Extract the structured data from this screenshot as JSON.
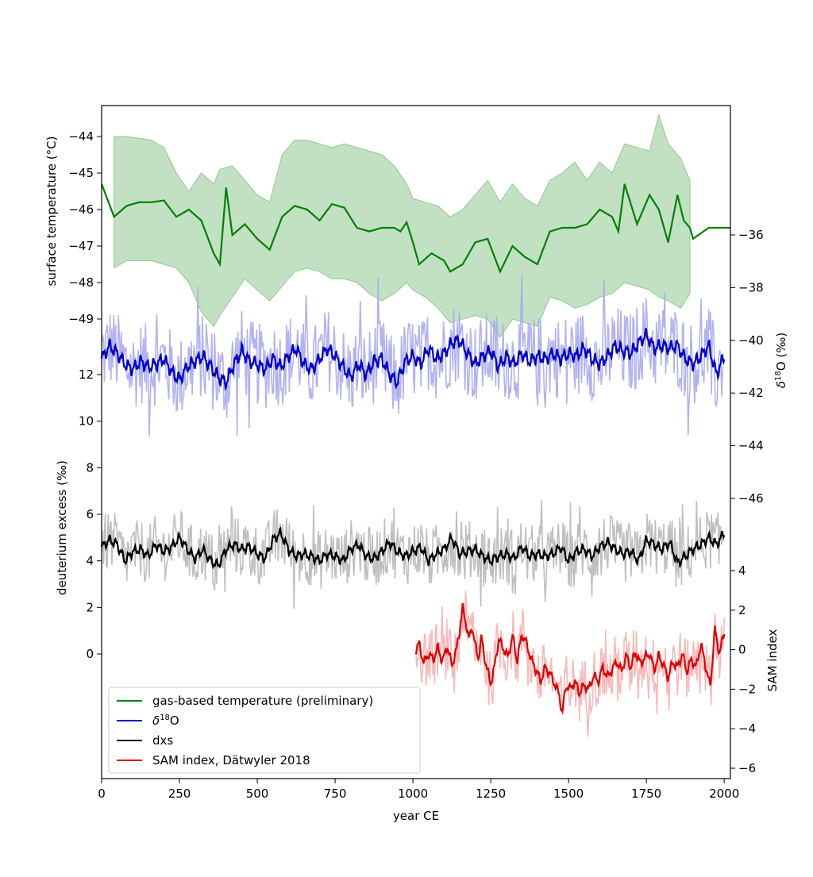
{
  "chart_data": {
    "type": "line",
    "x_axis": {
      "label": "year CE",
      "range": [
        0,
        2020
      ],
      "ticks": [
        0,
        250,
        500,
        750,
        1000,
        1250,
        1500,
        1750,
        2000
      ],
      "tick_labels": [
        "0",
        "250",
        "500",
        "750",
        "1000",
        "1250",
        "1500",
        "1750",
        "2000"
      ]
    },
    "axes": {
      "surface_temperature": {
        "label": "surface temperature (°C)",
        "side": "left",
        "ticks": [
          -44,
          -45,
          -46,
          -47,
          -48,
          -49
        ],
        "tick_labels": [
          "−44",
          "−45",
          "−46",
          "−47",
          "−48",
          "−49"
        ]
      },
      "deuterium_excess": {
        "label": "deuterium excess (‰)",
        "side": "left",
        "ticks": [
          12,
          10,
          8,
          6,
          4,
          2,
          0
        ],
        "tick_labels": [
          "12",
          "10",
          "8",
          "6",
          "4",
          "2",
          "0"
        ]
      },
      "d18O": {
        "label_prefix": "δ",
        "label_sup": "18",
        "label_suffix": "O (‰)",
        "side": "right",
        "ticks": [
          -36,
          -38,
          -40,
          -42,
          -44,
          -46
        ],
        "tick_labels": [
          "−36",
          "−38",
          "−40",
          "−42",
          "−44",
          "−46"
        ]
      },
      "sam_index": {
        "label": "SAM index",
        "side": "right",
        "ticks": [
          4,
          2,
          0,
          -2,
          -4,
          -6
        ],
        "tick_labels": [
          "4",
          "2",
          "0",
          "−2",
          "−4",
          "−6"
        ]
      }
    },
    "series": [
      {
        "name": "gas-based temperature (preliminary)",
        "axis": "surface_temperature",
        "color": "#008000",
        "band_color": "#90c890",
        "x": [
          0,
          40,
          80,
          120,
          160,
          200,
          240,
          280,
          320,
          360,
          380,
          400,
          420,
          460,
          500,
          540,
          580,
          620,
          660,
          700,
          740,
          780,
          820,
          860,
          900,
          940,
          960,
          980,
          1000,
          1020,
          1060,
          1100,
          1120,
          1160,
          1200,
          1240,
          1280,
          1320,
          1360,
          1400,
          1440,
          1480,
          1520,
          1560,
          1600,
          1640,
          1660,
          1680,
          1720,
          1760,
          1790,
          1820,
          1850,
          1870,
          1890,
          1900,
          1950,
          2020
        ],
        "y": [
          -45.3,
          -46.2,
          -45.9,
          -45.8,
          -45.8,
          -45.75,
          -46.2,
          -46.0,
          -46.3,
          -47.2,
          -47.5,
          -45.4,
          -46.7,
          -46.4,
          -46.8,
          -47.1,
          -46.2,
          -45.9,
          -46.0,
          -46.3,
          -45.85,
          -45.95,
          -46.5,
          -46.6,
          -46.5,
          -46.5,
          -46.6,
          -46.35,
          -46.9,
          -47.5,
          -47.2,
          -47.4,
          -47.7,
          -47.5,
          -46.9,
          -46.8,
          -47.7,
          -47.0,
          -47.3,
          -47.5,
          -46.6,
          -46.5,
          -46.5,
          -46.4,
          -46.0,
          -46.2,
          -46.6,
          -45.3,
          -46.4,
          -45.6,
          -46.0,
          -46.9,
          -45.6,
          -46.3,
          -46.5,
          -46.8,
          -46.5,
          -46.5
        ],
        "band_x": [
          40,
          80,
          160,
          200,
          240,
          280,
          320,
          360,
          380,
          420,
          460,
          500,
          540,
          580,
          620,
          660,
          700,
          740,
          780,
          820,
          860,
          900,
          940,
          980,
          1000,
          1040,
          1080,
          1120,
          1160,
          1200,
          1240,
          1280,
          1320,
          1360,
          1400,
          1440,
          1480,
          1520,
          1560,
          1600,
          1640,
          1680,
          1720,
          1760,
          1790,
          1820,
          1860,
          1890
        ],
        "band_upper": [
          -44.0,
          -44.0,
          -44.1,
          -44.3,
          -45.0,
          -45.5,
          -45.0,
          -45.3,
          -44.9,
          -44.8,
          -45.2,
          -45.6,
          -45.8,
          -44.5,
          -44.1,
          -44.1,
          -44.2,
          -44.3,
          -44.2,
          -44.3,
          -44.4,
          -44.5,
          -44.8,
          -45.3,
          -45.7,
          -45.8,
          -45.9,
          -46.2,
          -46.0,
          -45.6,
          -45.2,
          -45.8,
          -45.3,
          -45.7,
          -45.9,
          -45.2,
          -45.0,
          -44.7,
          -45.2,
          -44.7,
          -45.0,
          -44.2,
          -44.3,
          -44.4,
          -43.4,
          -44.2,
          -44.6,
          -45.2
        ],
        "band_lower": [
          -47.6,
          -47.4,
          -47.4,
          -47.5,
          -47.6,
          -48.0,
          -48.8,
          -49.2,
          -48.9,
          -48.4,
          -47.9,
          -48.2,
          -48.5,
          -48.1,
          -47.7,
          -47.6,
          -47.7,
          -47.9,
          -47.9,
          -48.0,
          -48.3,
          -48.5,
          -48.3,
          -48.0,
          -48.2,
          -48.4,
          -48.7,
          -49.1,
          -49.0,
          -48.9,
          -49.0,
          -49.5,
          -49.0,
          -49.1,
          -49.2,
          -48.4,
          -48.5,
          -48.7,
          -48.6,
          -48.4,
          -48.3,
          -48.0,
          -48.1,
          -48.2,
          -48.4,
          -48.5,
          -48.7,
          -48.3
        ]
      },
      {
        "name": "δ18O",
        "name_prefix": "δ",
        "name_sup": "18",
        "name_suffix": "O",
        "axis": "d18O",
        "color": "#0000cc",
        "raw_color": "#aaaaf0",
        "smooth_x": [
          0,
          25,
          50,
          75,
          100,
          125,
          150,
          175,
          200,
          225,
          250,
          275,
          300,
          325,
          350,
          375,
          400,
          425,
          450,
          475,
          500,
          525,
          550,
          575,
          600,
          625,
          650,
          675,
          700,
          725,
          750,
          775,
          800,
          825,
          850,
          875,
          900,
          925,
          950,
          975,
          1000,
          1025,
          1050,
          1075,
          1100,
          1125,
          1150,
          1175,
          1200,
          1225,
          1250,
          1275,
          1300,
          1325,
          1350,
          1375,
          1400,
          1425,
          1450,
          1475,
          1500,
          1525,
          1550,
          1575,
          1600,
          1625,
          1650,
          1675,
          1700,
          1725,
          1750,
          1775,
          1800,
          1825,
          1850,
          1875,
          1900,
          1925,
          1950,
          1975,
          2000
        ],
        "smooth_y": [
          -40.7,
          -40.2,
          -40.5,
          -40.9,
          -41.1,
          -40.8,
          -41.0,
          -40.9,
          -40.7,
          -41.2,
          -41.5,
          -41.0,
          -40.8,
          -40.6,
          -41.0,
          -41.4,
          -41.6,
          -40.9,
          -40.4,
          -40.8,
          -40.9,
          -41.1,
          -40.7,
          -41.0,
          -40.6,
          -40.3,
          -40.9,
          -41.1,
          -40.7,
          -40.3,
          -40.6,
          -41.0,
          -41.4,
          -40.9,
          -41.3,
          -40.8,
          -40.7,
          -41.3,
          -41.6,
          -40.8,
          -40.6,
          -40.9,
          -40.3,
          -40.7,
          -40.5,
          -40.1,
          -40.0,
          -40.5,
          -40.9,
          -40.6,
          -40.4,
          -41.0,
          -40.6,
          -40.9,
          -40.5,
          -40.8,
          -40.6,
          -40.7,
          -40.5,
          -40.7,
          -40.5,
          -40.6,
          -40.3,
          -40.7,
          -40.9,
          -40.6,
          -40.2,
          -40.4,
          -40.5,
          -40.1,
          -39.8,
          -40.3,
          -40.2,
          -40.3,
          -40.2,
          -40.7,
          -40.9,
          -40.6,
          -40.2,
          -41.3,
          -40.6
        ],
        "raw_spread": 1.6
      },
      {
        "name": "dxs",
        "axis": "deuterium_excess",
        "color": "#000000",
        "raw_color": "#b8b8b8",
        "smooth_x": [
          0,
          25,
          50,
          75,
          100,
          125,
          150,
          175,
          200,
          225,
          250,
          275,
          300,
          325,
          350,
          375,
          400,
          425,
          450,
          475,
          500,
          525,
          550,
          575,
          600,
          625,
          650,
          675,
          700,
          725,
          750,
          775,
          800,
          825,
          850,
          875,
          900,
          925,
          950,
          975,
          1000,
          1025,
          1050,
          1075,
          1100,
          1125,
          1150,
          1175,
          1200,
          1225,
          1250,
          1275,
          1300,
          1325,
          1350,
          1375,
          1400,
          1425,
          1450,
          1475,
          1500,
          1525,
          1550,
          1575,
          1600,
          1625,
          1650,
          1675,
          1700,
          1725,
          1750,
          1775,
          1800,
          1825,
          1850,
          1875,
          1900,
          1925,
          1950,
          1975,
          2000
        ],
        "smooth_y": [
          4.6,
          4.9,
          4.7,
          4.0,
          4.4,
          4.5,
          4.2,
          4.7,
          4.4,
          4.6,
          5.0,
          4.5,
          4.1,
          4.5,
          4.0,
          3.8,
          4.5,
          4.7,
          4.5,
          4.6,
          4.3,
          4.1,
          4.9,
          5.2,
          4.5,
          4.2,
          4.3,
          4.2,
          4.0,
          4.3,
          4.2,
          4.0,
          4.5,
          4.7,
          4.2,
          4.1,
          4.4,
          4.8,
          4.4,
          4.2,
          4.4,
          4.6,
          4.0,
          4.3,
          4.5,
          5.0,
          4.3,
          4.4,
          4.5,
          4.2,
          4.0,
          4.2,
          4.3,
          4.1,
          4.6,
          4.2,
          4.3,
          4.2,
          4.3,
          4.6,
          4.0,
          4.4,
          4.5,
          4.2,
          4.6,
          4.8,
          4.5,
          4.3,
          4.4,
          4.0,
          4.9,
          4.7,
          4.5,
          4.8,
          3.9,
          4.2,
          4.5,
          4.7,
          5.0,
          4.7,
          5.2
        ],
        "raw_spread": 1.3
      },
      {
        "name": "SAM index, Dätwyler 2018",
        "axis": "sam_index",
        "color": "#dd0000",
        "raw_color": "#f8b0b0",
        "smooth_x": [
          1010,
          1020,
          1035,
          1050,
          1065,
          1080,
          1095,
          1110,
          1125,
          1140,
          1150,
          1160,
          1170,
          1180,
          1190,
          1200,
          1210,
          1220,
          1235,
          1250,
          1262,
          1275,
          1290,
          1305,
          1320,
          1335,
          1350,
          1365,
          1380,
          1395,
          1410,
          1425,
          1440,
          1455,
          1470,
          1480,
          1492,
          1505,
          1520,
          1535,
          1550,
          1565,
          1580,
          1595,
          1610,
          1625,
          1640,
          1655,
          1670,
          1685,
          1700,
          1715,
          1730,
          1745,
          1760,
          1775,
          1790,
          1805,
          1820,
          1835,
          1850,
          1865,
          1880,
          1895,
          1910,
          1925,
          1940,
          1955,
          1970,
          1985,
          2000
        ],
        "smooth_y": [
          0.0,
          0.3,
          -0.7,
          -0.2,
          -0.5,
          0.1,
          -0.6,
          0.2,
          -0.8,
          0.0,
          1.0,
          2.1,
          1.4,
          0.5,
          1.2,
          0.2,
          -0.4,
          0.6,
          -0.8,
          -1.7,
          -0.9,
          0.5,
          0.1,
          -0.4,
          0.7,
          -0.6,
          0.8,
          0.3,
          -0.5,
          -1.0,
          -1.6,
          -0.9,
          -1.2,
          -1.7,
          -2.3,
          -3.2,
          -1.8,
          -2.0,
          -1.6,
          -2.2,
          -1.8,
          -2.0,
          -1.3,
          -1.6,
          -0.9,
          -1.4,
          -1.0,
          -0.6,
          -1.1,
          -0.3,
          -0.9,
          -0.1,
          -0.7,
          -0.4,
          -0.2,
          -1.0,
          -0.3,
          -0.8,
          -1.4,
          -0.6,
          -0.9,
          -0.2,
          -1.1,
          -0.5,
          -0.9,
          0.3,
          -0.8,
          -1.9,
          1.0,
          -0.2,
          0.9
        ],
        "raw_spread": 1.5
      }
    ],
    "legend": {
      "position": "lower-left",
      "entries": [
        {
          "text": "gas-based temperature (preliminary)",
          "color": "#008000"
        },
        {
          "text_prefix": "δ",
          "text_sup": "18",
          "text_suffix": "O",
          "color": "#0000cc"
        },
        {
          "text": "dxs",
          "color": "#000000"
        },
        {
          "text": "SAM index, Dätwyler 2018",
          "color": "#dd0000"
        }
      ]
    },
    "grid": false
  }
}
